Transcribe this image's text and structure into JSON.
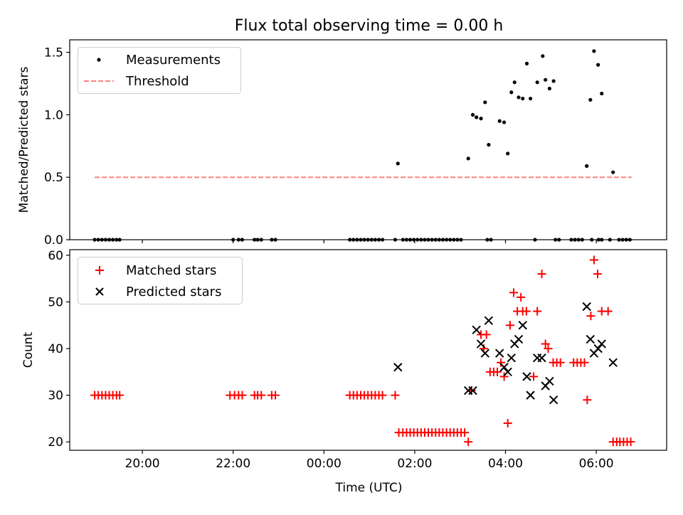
{
  "chart_data": [
    {
      "type": "scatter",
      "title": "Flux total observing time = 0.00 h",
      "xlabel": "",
      "ylabel": "Matched/Predicted stars",
      "ylim": [
        0,
        1.6
      ],
      "yticks": [
        0.0,
        0.5,
        1.0,
        1.5
      ],
      "ytick_labels": [
        "0.0",
        "0.5",
        "1.0",
        "1.5"
      ],
      "xlim": [
        18.4,
        31.55
      ],
      "xticks": [
        20,
        22,
        24,
        26,
        28,
        30
      ],
      "legend_position": "top-left",
      "series": [
        {
          "name": "Measurements",
          "kind": "points",
          "color": "#000000",
          "points": [
            [
              18.95,
              0
            ],
            [
              19.03,
              0
            ],
            [
              19.11,
              0
            ],
            [
              19.19,
              0
            ],
            [
              19.27,
              0
            ],
            [
              19.35,
              0
            ],
            [
              19.43,
              0
            ],
            [
              19.5,
              0
            ],
            [
              22.0,
              0
            ],
            [
              22.12,
              0
            ],
            [
              22.2,
              0
            ],
            [
              22.47,
              0
            ],
            [
              22.54,
              0
            ],
            [
              22.62,
              0
            ],
            [
              22.85,
              0
            ],
            [
              22.93,
              0
            ],
            [
              24.57,
              0
            ],
            [
              24.65,
              0
            ],
            [
              24.73,
              0
            ],
            [
              24.81,
              0
            ],
            [
              24.89,
              0
            ],
            [
              24.97,
              0
            ],
            [
              25.05,
              0
            ],
            [
              25.13,
              0
            ],
            [
              25.21,
              0
            ],
            [
              25.29,
              0
            ],
            [
              25.57,
              0
            ],
            [
              25.74,
              0
            ],
            [
              25.82,
              0
            ],
            [
              25.9,
              0
            ],
            [
              25.98,
              0
            ],
            [
              26.06,
              0
            ],
            [
              26.14,
              0
            ],
            [
              26.22,
              0
            ],
            [
              26.3,
              0
            ],
            [
              26.38,
              0
            ],
            [
              26.46,
              0
            ],
            [
              26.54,
              0
            ],
            [
              26.62,
              0
            ],
            [
              26.7,
              0
            ],
            [
              26.78,
              0
            ],
            [
              26.86,
              0
            ],
            [
              26.94,
              0
            ],
            [
              27.02,
              0
            ],
            [
              27.6,
              0
            ],
            [
              27.68,
              0
            ],
            [
              28.65,
              0
            ],
            [
              29.1,
              0
            ],
            [
              29.18,
              0
            ],
            [
              29.45,
              0
            ],
            [
              29.53,
              0
            ],
            [
              29.61,
              0
            ],
            [
              29.69,
              0
            ],
            [
              29.9,
              0
            ],
            [
              30.05,
              0
            ],
            [
              30.12,
              0
            ],
            [
              30.3,
              0
            ],
            [
              30.5,
              0
            ],
            [
              30.58,
              0
            ],
            [
              30.66,
              0
            ],
            [
              30.74,
              0
            ],
            [
              25.63,
              0.61
            ],
            [
              27.18,
              0.65
            ],
            [
              27.28,
              1.0
            ],
            [
              27.36,
              0.98
            ],
            [
              27.46,
              0.97
            ],
            [
              27.55,
              1.1
            ],
            [
              27.63,
              0.76
            ],
            [
              27.87,
              0.95
            ],
            [
              27.97,
              0.94
            ],
            [
              28.05,
              0.69
            ],
            [
              28.13,
              1.18
            ],
            [
              28.2,
              1.26
            ],
            [
              28.29,
              1.14
            ],
            [
              28.38,
              1.13
            ],
            [
              28.47,
              1.41
            ],
            [
              28.55,
              1.13
            ],
            [
              28.7,
              1.26
            ],
            [
              28.82,
              1.47
            ],
            [
              28.88,
              1.28
            ],
            [
              28.97,
              1.21
            ],
            [
              29.06,
              1.27
            ],
            [
              29.79,
              0.59
            ],
            [
              29.87,
              1.12
            ],
            [
              29.95,
              1.51
            ],
            [
              30.04,
              1.4
            ],
            [
              30.12,
              1.17
            ],
            [
              30.37,
              0.54
            ]
          ]
        },
        {
          "name": "Threshold",
          "kind": "dashed-line",
          "color": "#ff7f7f",
          "x": [
            18.95,
            30.78
          ],
          "y": [
            0.5,
            0.5
          ]
        }
      ]
    },
    {
      "type": "scatter",
      "title": "",
      "xlabel": "Time (UTC)",
      "ylabel": "Count",
      "ylim": [
        18.2,
        61.2
      ],
      "yticks": [
        20,
        30,
        40,
        50,
        60
      ],
      "ytick_labels": [
        "20",
        "30",
        "40",
        "50",
        "60"
      ],
      "xlim": [
        18.4,
        31.55
      ],
      "xticks": [
        20,
        22,
        24,
        26,
        28,
        30
      ],
      "xtick_labels": [
        "20:00",
        "22:00",
        "00:00",
        "02:00",
        "04:00",
        "06:00"
      ],
      "legend_position": "top-left",
      "series": [
        {
          "name": "Matched stars",
          "marker": "plus",
          "color": "#ff0000",
          "points": [
            [
              18.95,
              30
            ],
            [
              19.03,
              30
            ],
            [
              19.11,
              30
            ],
            [
              19.19,
              30
            ],
            [
              19.27,
              30
            ],
            [
              19.35,
              30
            ],
            [
              19.43,
              30
            ],
            [
              19.5,
              30
            ],
            [
              21.93,
              30
            ],
            [
              22.03,
              30
            ],
            [
              22.12,
              30
            ],
            [
              22.2,
              30
            ],
            [
              22.47,
              30
            ],
            [
              22.54,
              30
            ],
            [
              22.62,
              30
            ],
            [
              22.85,
              30
            ],
            [
              22.93,
              30
            ],
            [
              24.57,
              30
            ],
            [
              24.65,
              30
            ],
            [
              24.73,
              30
            ],
            [
              24.81,
              30
            ],
            [
              24.89,
              30
            ],
            [
              24.97,
              30
            ],
            [
              25.05,
              30
            ],
            [
              25.13,
              30
            ],
            [
              25.21,
              30
            ],
            [
              25.29,
              30
            ],
            [
              25.57,
              30
            ],
            [
              25.65,
              22
            ],
            [
              25.74,
              22
            ],
            [
              25.82,
              22
            ],
            [
              25.9,
              22
            ],
            [
              25.98,
              22
            ],
            [
              26.06,
              22
            ],
            [
              26.14,
              22
            ],
            [
              26.22,
              22
            ],
            [
              26.3,
              22
            ],
            [
              26.38,
              22
            ],
            [
              26.46,
              22
            ],
            [
              26.54,
              22
            ],
            [
              26.62,
              22
            ],
            [
              26.7,
              22
            ],
            [
              26.78,
              22
            ],
            [
              26.86,
              22
            ],
            [
              26.94,
              22
            ],
            [
              27.02,
              22
            ],
            [
              27.1,
              22
            ],
            [
              27.18,
              20
            ],
            [
              27.25,
              31
            ],
            [
              27.46,
              43
            ],
            [
              27.52,
              40
            ],
            [
              27.58,
              43
            ],
            [
              27.66,
              35
            ],
            [
              27.74,
              35
            ],
            [
              27.82,
              35
            ],
            [
              27.9,
              37
            ],
            [
              27.97,
              34
            ],
            [
              28.05,
              24
            ],
            [
              28.1,
              45
            ],
            [
              28.18,
              52
            ],
            [
              28.26,
              48
            ],
            [
              28.34,
              51
            ],
            [
              28.38,
              48
            ],
            [
              28.46,
              48
            ],
            [
              28.62,
              34
            ],
            [
              28.7,
              48
            ],
            [
              28.8,
              56
            ],
            [
              28.88,
              41
            ],
            [
              28.94,
              40
            ],
            [
              29.05,
              37
            ],
            [
              29.13,
              37
            ],
            [
              29.21,
              37
            ],
            [
              29.5,
              37
            ],
            [
              29.58,
              37
            ],
            [
              29.66,
              37
            ],
            [
              29.74,
              37
            ],
            [
              29.8,
              29
            ],
            [
              29.88,
              47
            ],
            [
              29.95,
              59
            ],
            [
              30.03,
              56
            ],
            [
              30.12,
              48
            ],
            [
              30.26,
              48
            ],
            [
              30.37,
              20
            ],
            [
              30.45,
              20
            ],
            [
              30.52,
              20
            ],
            [
              30.6,
              20
            ],
            [
              30.68,
              20
            ],
            [
              30.76,
              20
            ]
          ]
        },
        {
          "name": "Predicted stars",
          "marker": "x",
          "color": "#000000",
          "points": [
            [
              25.63,
              36
            ],
            [
              27.18,
              31
            ],
            [
              27.28,
              31
            ],
            [
              27.36,
              44
            ],
            [
              27.46,
              41
            ],
            [
              27.55,
              39
            ],
            [
              27.63,
              46
            ],
            [
              27.87,
              39
            ],
            [
              27.97,
              36
            ],
            [
              28.05,
              35
            ],
            [
              28.13,
              38
            ],
            [
              28.2,
              41
            ],
            [
              28.29,
              42
            ],
            [
              28.38,
              45
            ],
            [
              28.47,
              34
            ],
            [
              28.55,
              30
            ],
            [
              28.7,
              38
            ],
            [
              28.8,
              38
            ],
            [
              28.88,
              32
            ],
            [
              28.97,
              33
            ],
            [
              29.06,
              29
            ],
            [
              29.79,
              49
            ],
            [
              29.87,
              42
            ],
            [
              29.95,
              39
            ],
            [
              30.04,
              40
            ],
            [
              30.12,
              41
            ],
            [
              30.37,
              37
            ]
          ]
        }
      ]
    }
  ]
}
